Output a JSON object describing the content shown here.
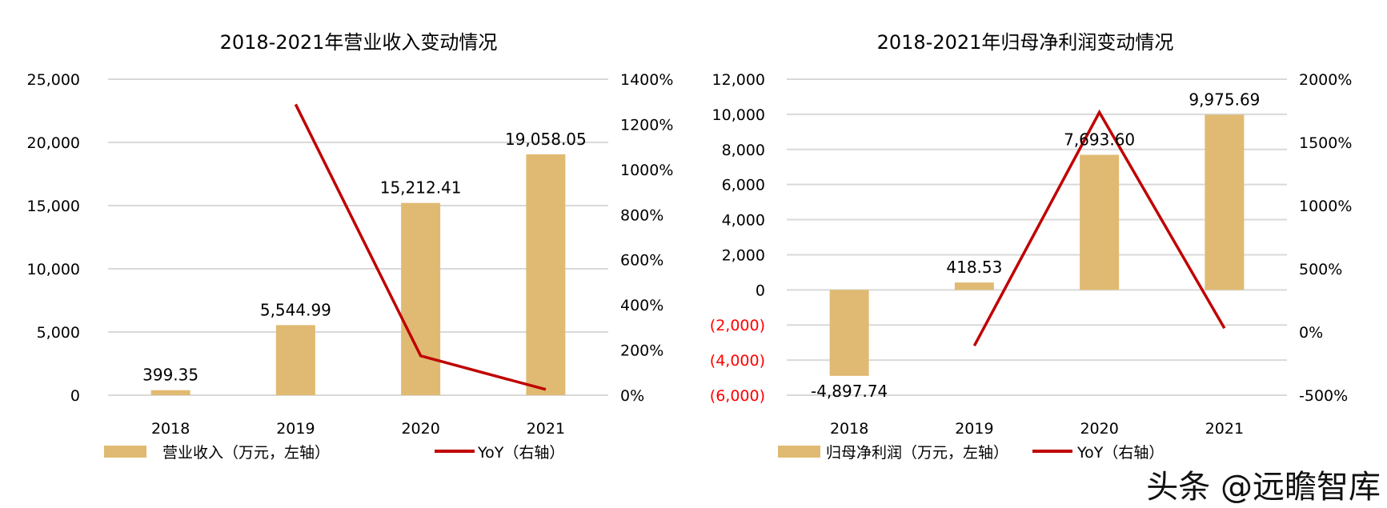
{
  "chart_data": [
    {
      "type": "bar+line",
      "title": "2018-2021年营业收入变动情况",
      "categories": [
        "2018",
        "2019",
        "2020",
        "2021"
      ],
      "series": [
        {
          "name": "营业收入（万元，左轴）",
          "type": "bar",
          "axis": "left",
          "values": [
            399.35,
            5544.99,
            15212.41,
            19058.05
          ],
          "labels": [
            "399.35",
            "5,544.99",
            "15,212.41",
            "19,058.05"
          ],
          "color": "#E0BA72"
        },
        {
          "name": "YoY（右轴）",
          "type": "line",
          "axis": "right",
          "values": [
            null,
            1288.5,
            174.3,
            25.3
          ],
          "color": "#C00000"
        }
      ],
      "left_axis": {
        "ylim": [
          0,
          25000
        ],
        "ticks": [
          0,
          5000,
          10000,
          15000,
          20000,
          25000
        ],
        "tick_labels": [
          "0",
          "5,000",
          "10,000",
          "15,000",
          "20,000",
          "25,000"
        ]
      },
      "right_axis": {
        "ylim": [
          0,
          1400
        ],
        "unit": "%",
        "ticks": [
          0,
          200,
          400,
          600,
          800,
          1000,
          1200,
          1400
        ],
        "tick_labels": [
          "0%",
          "200%",
          "400%",
          "600%",
          "800%",
          "1000%",
          "1200%",
          "1400%"
        ]
      },
      "grid": true,
      "legend_placement": "bottom"
    },
    {
      "type": "bar+line",
      "title": "2018-2021年归母净利润变动情况",
      "categories": [
        "2018",
        "2019",
        "2020",
        "2021"
      ],
      "series": [
        {
          "name": "归母净利润（万元，左轴）",
          "type": "bar",
          "axis": "left",
          "values": [
            -4897.74,
            418.53,
            7693.6,
            9975.69
          ],
          "labels": [
            "-4,897.74",
            "418.53",
            "7,693.60",
            "9,975.69"
          ],
          "color": "#E0BA72"
        },
        {
          "name": "YoY（右轴）",
          "type": "line",
          "axis": "right",
          "values": [
            null,
            -108.5,
            1738.2,
            29.7
          ],
          "color": "#C00000"
        }
      ],
      "left_axis": {
        "ylim": [
          -6000,
          12000
        ],
        "ticks": [
          -6000,
          -4000,
          -2000,
          0,
          2000,
          4000,
          6000,
          8000,
          10000,
          12000
        ],
        "tick_labels": [
          "(6,000)",
          "(4,000)",
          "(2,000)",
          "0",
          "2,000",
          "4,000",
          "6,000",
          "8,000",
          "10,000",
          "12,000"
        ],
        "negative_label_color": "#FF0000"
      },
      "right_axis": {
        "ylim": [
          -500,
          2000
        ],
        "unit": "%",
        "ticks": [
          -500,
          0,
          500,
          1000,
          1500,
          2000
        ],
        "tick_labels": [
          "-500%",
          "0%",
          "500%",
          "1000%",
          "1500%",
          "2000%"
        ]
      },
      "grid": true,
      "legend_placement": "bottom"
    }
  ],
  "watermark": "头条 @远瞻智库",
  "colors": {
    "bar": "#E0BA72",
    "line": "#C00000",
    "grid": "#D9D9D9",
    "negative_tick": "#FF0000"
  }
}
